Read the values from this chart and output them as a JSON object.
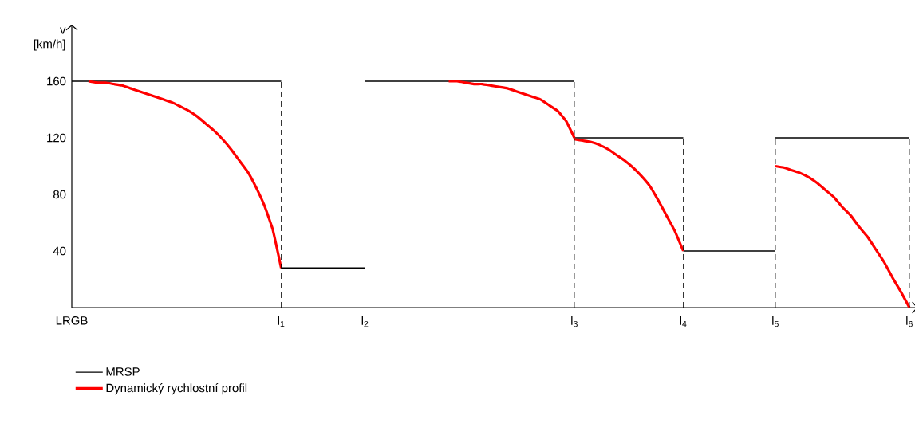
{
  "chart_data": {
    "type": "line",
    "ylabel": "v [km/h]",
    "ylim": [
      0,
      200
    ],
    "yticks": [
      40,
      80,
      120,
      160
    ],
    "categories": [
      "LRGB",
      null,
      null,
      null,
      null,
      null,
      null,
      null,
      null,
      null,
      null,
      null,
      null,
      null,
      null,
      null,
      null,
      null,
      null,
      null,
      null,
      null,
      null,
      null,
      null,
      "l$_{1}$",
      null,
      null,
      null,
      null,
      null,
      null,
      null,
      null,
      null,
      "l$_{2}$",
      null,
      null,
      null,
      null,
      null,
      null,
      null,
      null,
      null,
      null,
      null,
      null,
      null,
      null,
      null,
      null,
      null,
      null,
      null,
      null,
      null,
      null,
      null,
      null,
      "l$_{3}$",
      null,
      null,
      null,
      null,
      null,
      null,
      null,
      null,
      null,
      null,
      null,
      null,
      "l$_{4}$",
      null,
      null,
      null,
      null,
      null,
      null,
      null,
      null,
      null,
      null,
      "l$_{5}$",
      null,
      null,
      null,
      null,
      null,
      null,
      null,
      null,
      null,
      null,
      null,
      null,
      null,
      null,
      null,
      "l$_{6}$"
    ],
    "grid": false,
    "legend": "bottom",
    "marker": "none",
    "line_style": "solid",
    "series": [
      {
        "name": "MRSP",
        "color": "#000000",
        "values": [
          160,
          160,
          160,
          160,
          160,
          160,
          160,
          160,
          160,
          160,
          160,
          160,
          160,
          160,
          160,
          160,
          160,
          160,
          160,
          160,
          160,
          160,
          160,
          160,
          160,
          160,
          null,
          null,
          null,
          null,
          null,
          null,
          null,
          null,
          null,
          null,
          null,
          null,
          null,
          null,
          null,
          null,
          null,
          null,
          null,
          null,
          null,
          null,
          null,
          null,
          null,
          null,
          null,
          null,
          null,
          null,
          null,
          null,
          null,
          null,
          null,
          null,
          null,
          null,
          null,
          null,
          null,
          null,
          null,
          null,
          null,
          null,
          null,
          null,
          null,
          null,
          null,
          null,
          null,
          null,
          null,
          null,
          null,
          null,
          null,
          null,
          null,
          null,
          null,
          null,
          null,
          null,
          null,
          null,
          null,
          null,
          null,
          null,
          null,
          null,
          null
        ]
      },
      {
        "color": "#000000",
        "values": [
          null,
          null,
          null,
          null,
          null,
          null,
          null,
          null,
          null,
          null,
          null,
          null,
          null,
          null,
          null,
          null,
          null,
          null,
          null,
          null,
          null,
          null,
          null,
          null,
          null,
          28,
          28,
          28,
          28,
          28,
          28,
          28,
          28,
          28,
          28,
          28,
          null,
          null,
          null,
          null,
          null,
          null,
          null,
          null,
          null,
          null,
          null,
          null,
          null,
          null,
          null,
          null,
          null,
          null,
          null,
          null,
          null,
          null,
          null,
          null,
          null,
          null,
          null,
          null,
          null,
          null,
          null,
          null,
          null,
          null,
          null,
          null,
          null,
          null,
          null,
          null,
          null,
          null,
          null,
          null,
          null,
          null,
          null,
          null,
          null,
          null,
          null,
          null,
          null,
          null,
          null,
          null,
          null,
          null,
          null,
          null,
          null,
          null,
          null,
          null,
          null
        ]
      },
      {
        "color": "#000000",
        "values": [
          null,
          null,
          null,
          null,
          null,
          null,
          null,
          null,
          null,
          null,
          null,
          null,
          null,
          null,
          null,
          null,
          null,
          null,
          null,
          null,
          null,
          null,
          null,
          null,
          null,
          null,
          null,
          null,
          null,
          null,
          null,
          null,
          null,
          null,
          null,
          160,
          160,
          160,
          160,
          160,
          160,
          160,
          160,
          160,
          160,
          160,
          160,
          160,
          160,
          160,
          160,
          160,
          160,
          160,
          160,
          160,
          160,
          160,
          160,
          160,
          160,
          null,
          null,
          null,
          null,
          null,
          null,
          null,
          null,
          null,
          null,
          null,
          null,
          null,
          null,
          null,
          null,
          null,
          null,
          null,
          null,
          null,
          null,
          null,
          null,
          null,
          null,
          null,
          null,
          null,
          null,
          null,
          null,
          null,
          null,
          null,
          null,
          null,
          null,
          null,
          null
        ]
      },
      {
        "color": "#000000",
        "values": [
          null,
          null,
          null,
          null,
          null,
          null,
          null,
          null,
          null,
          null,
          null,
          null,
          null,
          null,
          null,
          null,
          null,
          null,
          null,
          null,
          null,
          null,
          null,
          null,
          null,
          null,
          null,
          null,
          null,
          null,
          null,
          null,
          null,
          null,
          null,
          null,
          null,
          null,
          null,
          null,
          null,
          null,
          null,
          null,
          null,
          null,
          null,
          null,
          null,
          null,
          null,
          null,
          null,
          null,
          null,
          null,
          null,
          null,
          null,
          null,
          120,
          120,
          120,
          120,
          120,
          120,
          120,
          120,
          120,
          120,
          120,
          120,
          120,
          120,
          null,
          null,
          null,
          null,
          null,
          null,
          null,
          null,
          null,
          null,
          null,
          null,
          null,
          null,
          null,
          null,
          null,
          null,
          null,
          null,
          null,
          null,
          null,
          null,
          null,
          null,
          null
        ]
      },
      {
        "color": "#000000",
        "values": [
          null,
          null,
          null,
          null,
          null,
          null,
          null,
          null,
          null,
          null,
          null,
          null,
          null,
          null,
          null,
          null,
          null,
          null,
          null,
          null,
          null,
          null,
          null,
          null,
          null,
          null,
          null,
          null,
          null,
          null,
          null,
          null,
          null,
          null,
          null,
          null,
          null,
          null,
          null,
          null,
          null,
          null,
          null,
          null,
          null,
          null,
          null,
          null,
          null,
          null,
          null,
          null,
          null,
          null,
          null,
          null,
          null,
          null,
          null,
          null,
          null,
          null,
          null,
          null,
          null,
          null,
          null,
          null,
          null,
          null,
          null,
          null,
          null,
          40,
          40,
          40,
          40,
          40,
          40,
          40,
          40,
          40,
          40,
          40,
          40,
          null,
          null,
          null,
          null,
          null,
          null,
          null,
          null,
          null,
          null,
          null,
          null,
          null,
          null,
          null,
          null
        ]
      },
      {
        "color": "#000000",
        "values": [
          null,
          null,
          null,
          null,
          null,
          null,
          null,
          null,
          null,
          null,
          null,
          null,
          null,
          null,
          null,
          null,
          null,
          null,
          null,
          null,
          null,
          null,
          null,
          null,
          null,
          null,
          null,
          null,
          null,
          null,
          null,
          null,
          null,
          null,
          null,
          null,
          null,
          null,
          null,
          null,
          null,
          null,
          null,
          null,
          null,
          null,
          null,
          null,
          null,
          null,
          null,
          null,
          null,
          null,
          null,
          null,
          null,
          null,
          null,
          null,
          null,
          null,
          null,
          null,
          null,
          null,
          null,
          null,
          null,
          null,
          null,
          null,
          null,
          null,
          null,
          null,
          null,
          null,
          null,
          null,
          null,
          null,
          null,
          null,
          120,
          120,
          120,
          120,
          120,
          120,
          120,
          120,
          120,
          120,
          120,
          120,
          120,
          120,
          120,
          120,
          120
        ]
      },
      {
        "name": "Dynamický rychlostní profil",
        "color": "#ff0000",
        "values": [
          null,
          null,
          160,
          159,
          159,
          158,
          157,
          155,
          153,
          151,
          149,
          147,
          145,
          142,
          139,
          135,
          130,
          125,
          119,
          112,
          104,
          96,
          85,
          72,
          55,
          28,
          null,
          null,
          null,
          null,
          null,
          null,
          null,
          null,
          null,
          null,
          null,
          null,
          null,
          null,
          null,
          null,
          null,
          null,
          null,
          null,
          null,
          null,
          null,
          null,
          null,
          null,
          null,
          null,
          null,
          null,
          null,
          null,
          null,
          null,
          null,
          null,
          null,
          null,
          null,
          null,
          null,
          null,
          null,
          null,
          null,
          null,
          null,
          null,
          null,
          null,
          null,
          null,
          null,
          null,
          null,
          null,
          null,
          null,
          null,
          null,
          null,
          null,
          null,
          null,
          null,
          null,
          null,
          null,
          null,
          null,
          null,
          null,
          null,
          null,
          null
        ]
      },
      {
        "color": "#ff0000",
        "values": [
          null,
          null,
          null,
          null,
          null,
          null,
          null,
          null,
          null,
          null,
          null,
          null,
          null,
          null,
          null,
          null,
          null,
          null,
          null,
          null,
          null,
          null,
          null,
          null,
          null,
          null,
          null,
          null,
          null,
          null,
          null,
          null,
          null,
          null,
          null,
          null,
          null,
          null,
          null,
          null,
          null,
          null,
          null,
          null,
          null,
          160,
          160,
          159,
          158,
          158,
          157,
          156,
          155,
          153,
          151,
          149,
          147,
          143,
          139,
          132,
          120,
          null,
          null,
          null,
          null,
          null,
          null,
          null,
          null,
          null,
          null,
          null,
          null,
          null,
          null,
          null,
          null,
          null,
          null,
          null,
          null,
          null,
          null,
          null,
          null,
          null,
          null,
          null,
          null,
          null,
          null,
          null,
          null,
          null,
          null,
          null,
          null,
          null,
          null,
          null,
          null
        ]
      },
      {
        "color": "#ff0000",
        "values": [
          null,
          null,
          null,
          null,
          null,
          null,
          null,
          null,
          null,
          null,
          null,
          null,
          null,
          null,
          null,
          null,
          null,
          null,
          null,
          null,
          null,
          null,
          null,
          null,
          null,
          null,
          null,
          null,
          null,
          null,
          null,
          null,
          null,
          null,
          null,
          null,
          null,
          null,
          null,
          null,
          null,
          null,
          null,
          null,
          null,
          null,
          null,
          null,
          null,
          null,
          null,
          null,
          null,
          null,
          null,
          null,
          null,
          null,
          null,
          null,
          119,
          118,
          117,
          115,
          112,
          108,
          104,
          99,
          93,
          86,
          76,
          65,
          54,
          40,
          null,
          null,
          null,
          null,
          null,
          null,
          null,
          null,
          null,
          null,
          null,
          null,
          null,
          null,
          null,
          null,
          null,
          null,
          null,
          null,
          null,
          null,
          null,
          null,
          null,
          null,
          null
        ]
      },
      {
        "color": "#ff0000",
        "values": [
          null,
          null,
          null,
          null,
          null,
          null,
          null,
          null,
          null,
          null,
          null,
          null,
          null,
          null,
          null,
          null,
          null,
          null,
          null,
          null,
          null,
          null,
          null,
          null,
          null,
          null,
          null,
          null,
          null,
          null,
          null,
          null,
          null,
          null,
          null,
          null,
          null,
          null,
          null,
          null,
          null,
          null,
          null,
          null,
          null,
          null,
          null,
          null,
          null,
          null,
          null,
          null,
          null,
          null,
          null,
          null,
          null,
          null,
          null,
          null,
          null,
          null,
          null,
          null,
          null,
          null,
          null,
          null,
          null,
          null,
          null,
          null,
          null,
          null,
          null,
          null,
          null,
          null,
          null,
          null,
          null,
          null,
          null,
          null,
          100,
          99,
          97,
          95,
          92,
          88,
          83,
          78,
          71,
          65,
          57,
          50,
          41,
          32,
          21,
          11,
          0
        ]
      }
    ],
    "ref_lines": [
      {
        "axis": "x",
        "value": "l$_{1}$",
        "color": "#000000",
        "line_style": "dashed"
      },
      {
        "axis": "x",
        "value": "l$_{2}$",
        "color": "#000000",
        "line_style": "dashed"
      },
      {
        "axis": "x",
        "value": "l$_{3}$",
        "color": "#000000",
        "line_style": "dashed"
      },
      {
        "axis": "x",
        "value": "l$_{4}$",
        "color": "#000000",
        "line_style": "dashed"
      },
      {
        "axis": "x",
        "value": "l$_{5}$",
        "color": "#000000",
        "line_style": "dashed"
      },
      {
        "axis": "x",
        "value": "l$_{6}$",
        "color": "#000000",
        "line_style": "dashed"
      }
    ]
  }
}
